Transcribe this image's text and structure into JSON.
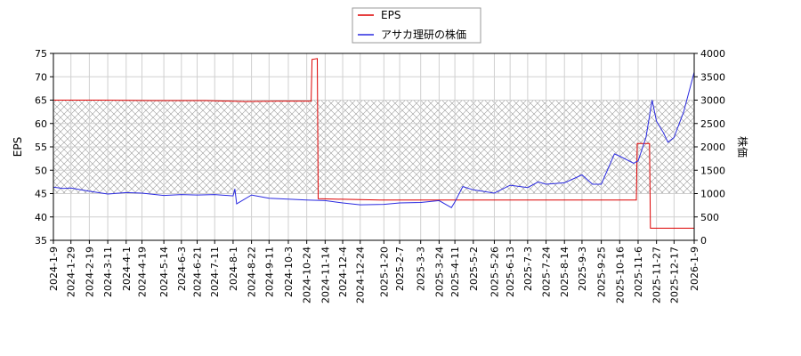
{
  "chart_data": {
    "type": "line",
    "title": "",
    "xlabel": "",
    "ylabel": "EPS",
    "y2label": "株価",
    "ylim": [
      35,
      75
    ],
    "y2lim": [
      0,
      4000
    ],
    "yticks": [
      35,
      40,
      45,
      50,
      55,
      60,
      65,
      70,
      75
    ],
    "y2ticks": [
      0,
      500,
      1000,
      1500,
      2000,
      2500,
      3000,
      3500,
      4000
    ],
    "xlim": [
      "2024-01-09",
      "2026-01-09"
    ],
    "xticks": [
      "2024-1-9",
      "2024-1-29",
      "2024-2-19",
      "2024-3-11",
      "2024-4-1",
      "2024-4-19",
      "2024-5-14",
      "2024-6-3",
      "2024-6-21",
      "2024-7-11",
      "2024-8-1",
      "2024-8-22",
      "2024-9-11",
      "2024-10-3",
      "2024-10-24",
      "2024-11-14",
      "2024-12-4",
      "2024-12-24",
      "2025-1-20",
      "2025-2-7",
      "2025-3-3",
      "2025-3-24",
      "2025-4-11",
      "2025-5-2",
      "2025-5-26",
      "2025-6-13",
      "2025-7-3",
      "2025-7-24",
      "2025-8-14",
      "2025-9-3",
      "2025-9-25",
      "2025-10-16",
      "2025-11-6",
      "2025-11-27",
      "2025-12-17",
      "2026-1-9"
    ],
    "grid": true,
    "legend_position": "top-center",
    "hatch_band": [
      1000,
      3000
    ],
    "series": [
      {
        "name": "EPS",
        "axis": "left",
        "color": "#dd0000",
        "points": [
          [
            "2024-01-09",
            65.0
          ],
          [
            "2024-03-01",
            65.0
          ],
          [
            "2024-05-01",
            64.9
          ],
          [
            "2024-07-01",
            64.9
          ],
          [
            "2024-08-15",
            64.7
          ],
          [
            "2024-09-20",
            64.8
          ],
          [
            "2024-10-29",
            64.8
          ],
          [
            "2024-10-30",
            73.7
          ],
          [
            "2024-11-05",
            73.9
          ],
          [
            "2024-11-06",
            43.9
          ],
          [
            "2025-01-15",
            43.6
          ],
          [
            "2025-04-01",
            43.6
          ],
          [
            "2025-06-01",
            43.6
          ],
          [
            "2025-08-01",
            43.6
          ],
          [
            "2025-11-04",
            43.6
          ],
          [
            "2025-11-05",
            55.7
          ],
          [
            "2025-11-19",
            55.7
          ],
          [
            "2025-11-20",
            37.6
          ],
          [
            "2026-01-09",
            37.6
          ]
        ]
      },
      {
        "name": "アサカ理研の株価",
        "axis": "right",
        "color": "#2a2ae0",
        "points": [
          [
            "2024-01-09",
            1140
          ],
          [
            "2024-01-20",
            1110
          ],
          [
            "2024-01-29",
            1120
          ],
          [
            "2024-02-19",
            1050
          ],
          [
            "2024-03-11",
            990
          ],
          [
            "2024-04-01",
            1020
          ],
          [
            "2024-04-19",
            1010
          ],
          [
            "2024-05-14",
            960
          ],
          [
            "2024-06-03",
            980
          ],
          [
            "2024-06-21",
            970
          ],
          [
            "2024-07-11",
            980
          ],
          [
            "2024-08-01",
            950
          ],
          [
            "2024-08-03",
            1100
          ],
          [
            "2024-08-05",
            780
          ],
          [
            "2024-08-22",
            970
          ],
          [
            "2024-09-11",
            900
          ],
          [
            "2024-10-03",
            880
          ],
          [
            "2024-10-24",
            860
          ],
          [
            "2024-11-14",
            850
          ],
          [
            "2024-12-04",
            800
          ],
          [
            "2024-12-24",
            760
          ],
          [
            "2025-01-20",
            770
          ],
          [
            "2025-02-07",
            800
          ],
          [
            "2025-03-03",
            810
          ],
          [
            "2025-03-24",
            850
          ],
          [
            "2025-04-07",
            700
          ],
          [
            "2025-04-11",
            820
          ],
          [
            "2025-04-20",
            1150
          ],
          [
            "2025-05-02",
            1080
          ],
          [
            "2025-05-26",
            1010
          ],
          [
            "2025-06-13",
            1180
          ],
          [
            "2025-07-03",
            1130
          ],
          [
            "2025-07-15",
            1250
          ],
          [
            "2025-07-24",
            1200
          ],
          [
            "2025-08-14",
            1230
          ],
          [
            "2025-09-03",
            1400
          ],
          [
            "2025-09-15",
            1200
          ],
          [
            "2025-09-25",
            1200
          ],
          [
            "2025-10-10",
            1850
          ],
          [
            "2025-10-16",
            1800
          ],
          [
            "2025-11-01",
            1650
          ],
          [
            "2025-11-06",
            1700
          ],
          [
            "2025-11-15",
            2200
          ],
          [
            "2025-11-22",
            3000
          ],
          [
            "2025-11-27",
            2550
          ],
          [
            "2025-12-05",
            2300
          ],
          [
            "2025-12-10",
            2100
          ],
          [
            "2025-12-17",
            2200
          ],
          [
            "2025-12-28",
            2750
          ],
          [
            "2026-01-09",
            3600
          ]
        ]
      }
    ]
  }
}
